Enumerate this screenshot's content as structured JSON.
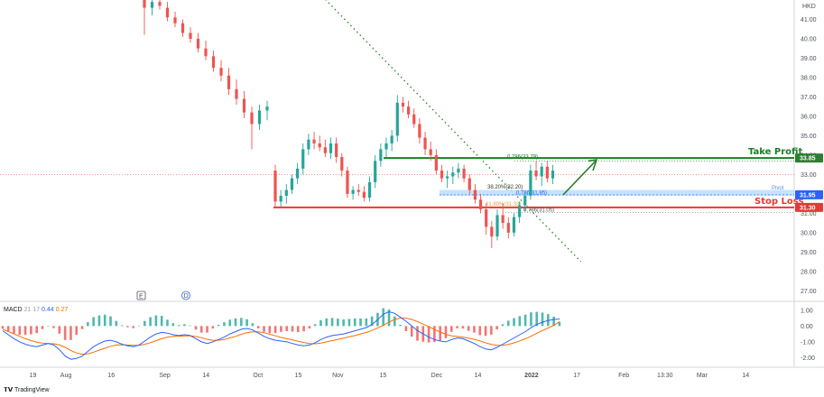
{
  "chart_data": {
    "type": "candlestick",
    "currency": "HKD",
    "price_axis": {
      "ylim": [
        26.5,
        42.0
      ],
      "ticks": [
        "41.00",
        "40.00",
        "39.00",
        "38.00",
        "37.00",
        "36.00",
        "35.00",
        "34.00",
        "33.00",
        "32.00",
        "31.00",
        "30.00",
        "29.00",
        "28.00",
        "27.00"
      ],
      "tick_values": [
        41,
        40,
        39,
        38,
        37,
        36,
        35,
        34,
        33,
        32,
        31,
        30,
        29,
        28,
        27
      ]
    },
    "time_axis": {
      "ticks": [
        "19",
        "Aug",
        "16",
        "Sep",
        "14",
        "Oct",
        "15",
        "Nov",
        "15",
        "Dec",
        "14",
        "2022",
        "17",
        "Feb",
        "13:30",
        "Mar",
        "14"
      ],
      "tick_x_fraction": [
        0.04,
        0.08,
        0.135,
        0.2,
        0.25,
        0.313,
        0.362,
        0.41,
        0.465,
        0.53,
        0.58,
        0.645,
        0.7,
        0.757,
        0.807,
        0.852,
        0.905
      ]
    },
    "candles": [
      {
        "o": 42.0,
        "h": 42.3,
        "l": 40.2,
        "c": 41.6
      },
      {
        "o": 41.6,
        "h": 42.1,
        "l": 41.2,
        "c": 41.9
      },
      {
        "o": 41.9,
        "h": 42.2,
        "l": 41.5,
        "c": 41.7
      },
      {
        "o": 41.6,
        "h": 41.9,
        "l": 40.9,
        "c": 41.1
      },
      {
        "o": 41.1,
        "h": 41.4,
        "l": 40.6,
        "c": 40.8
      },
      {
        "o": 40.8,
        "h": 41.0,
        "l": 40.1,
        "c": 40.3
      },
      {
        "o": 40.3,
        "h": 40.6,
        "l": 39.8,
        "c": 40.0
      },
      {
        "o": 40.0,
        "h": 40.3,
        "l": 39.3,
        "c": 39.5
      },
      {
        "o": 39.5,
        "h": 39.9,
        "l": 38.9,
        "c": 39.1
      },
      {
        "o": 39.1,
        "h": 39.4,
        "l": 38.3,
        "c": 38.5
      },
      {
        "o": 38.5,
        "h": 38.9,
        "l": 37.8,
        "c": 38.1
      },
      {
        "o": 38.1,
        "h": 38.5,
        "l": 37.1,
        "c": 37.4
      },
      {
        "o": 37.4,
        "h": 37.9,
        "l": 36.6,
        "c": 36.9
      },
      {
        "o": 36.9,
        "h": 37.3,
        "l": 35.9,
        "c": 36.2
      },
      {
        "o": 36.2,
        "h": 36.5,
        "l": 34.3,
        "c": 35.6
      },
      {
        "o": 35.6,
        "h": 36.6,
        "l": 35.3,
        "c": 36.3
      },
      {
        "o": 36.3,
        "h": 36.8,
        "l": 35.8,
        "c": 36.5
      },
      {
        "o": 33.2,
        "h": 33.5,
        "l": 31.3,
        "c": 31.6
      },
      {
        "o": 31.6,
        "h": 32.2,
        "l": 31.3,
        "c": 31.9
      },
      {
        "o": 31.9,
        "h": 32.5,
        "l": 31.5,
        "c": 32.2
      },
      {
        "o": 32.2,
        "h": 33.0,
        "l": 32.0,
        "c": 32.8
      },
      {
        "o": 32.8,
        "h": 33.6,
        "l": 32.5,
        "c": 33.3
      },
      {
        "o": 33.3,
        "h": 34.6,
        "l": 33.0,
        "c": 34.3
      },
      {
        "o": 34.3,
        "h": 35.1,
        "l": 34.0,
        "c": 34.8
      },
      {
        "o": 34.8,
        "h": 35.2,
        "l": 34.3,
        "c": 34.6
      },
      {
        "o": 34.6,
        "h": 35.0,
        "l": 34.2,
        "c": 34.4
      },
      {
        "o": 34.4,
        "h": 34.8,
        "l": 33.9,
        "c": 34.1
      },
      {
        "o": 34.1,
        "h": 34.9,
        "l": 33.8,
        "c": 34.6
      },
      {
        "o": 34.6,
        "h": 34.9,
        "l": 33.6,
        "c": 33.9
      },
      {
        "o": 33.9,
        "h": 34.1,
        "l": 32.9,
        "c": 33.2
      },
      {
        "o": 33.2,
        "h": 33.4,
        "l": 31.8,
        "c": 32.0
      },
      {
        "o": 32.0,
        "h": 32.4,
        "l": 31.7,
        "c": 32.2
      },
      {
        "o": 32.2,
        "h": 32.5,
        "l": 31.9,
        "c": 32.1
      },
      {
        "o": 32.1,
        "h": 32.4,
        "l": 31.6,
        "c": 31.8
      },
      {
        "o": 31.8,
        "h": 32.9,
        "l": 31.6,
        "c": 32.6
      },
      {
        "o": 32.6,
        "h": 34.0,
        "l": 32.3,
        "c": 33.7
      },
      {
        "o": 33.7,
        "h": 34.6,
        "l": 33.4,
        "c": 34.3
      },
      {
        "o": 34.3,
        "h": 34.9,
        "l": 33.9,
        "c": 34.6
      },
      {
        "o": 34.6,
        "h": 35.3,
        "l": 34.2,
        "c": 35.0
      },
      {
        "o": 35.0,
        "h": 37.1,
        "l": 34.7,
        "c": 36.7
      },
      {
        "o": 36.7,
        "h": 37.0,
        "l": 36.2,
        "c": 36.5
      },
      {
        "o": 36.5,
        "h": 36.8,
        "l": 35.9,
        "c": 36.1
      },
      {
        "o": 36.1,
        "h": 36.4,
        "l": 35.4,
        "c": 35.6
      },
      {
        "o": 35.6,
        "h": 35.9,
        "l": 34.6,
        "c": 34.9
      },
      {
        "o": 34.9,
        "h": 35.2,
        "l": 34.0,
        "c": 34.3
      },
      {
        "o": 34.3,
        "h": 34.7,
        "l": 33.7,
        "c": 34.0
      },
      {
        "o": 34.0,
        "h": 34.3,
        "l": 33.0,
        "c": 33.2
      },
      {
        "o": 33.2,
        "h": 33.5,
        "l": 32.6,
        "c": 32.8
      },
      {
        "o": 32.8,
        "h": 33.2,
        "l": 32.3,
        "c": 32.9
      },
      {
        "o": 32.9,
        "h": 33.4,
        "l": 32.5,
        "c": 33.1
      },
      {
        "o": 33.1,
        "h": 33.6,
        "l": 32.8,
        "c": 33.3
      },
      {
        "o": 33.3,
        "h": 33.5,
        "l": 32.6,
        "c": 32.8
      },
      {
        "o": 32.8,
        "h": 33.0,
        "l": 32.0,
        "c": 32.2
      },
      {
        "o": 32.2,
        "h": 32.5,
        "l": 31.5,
        "c": 31.7
      },
      {
        "o": 31.7,
        "h": 32.0,
        "l": 31.0,
        "c": 31.2
      },
      {
        "o": 31.2,
        "h": 31.5,
        "l": 29.9,
        "c": 30.3
      },
      {
        "o": 30.3,
        "h": 30.6,
        "l": 29.2,
        "c": 29.8
      },
      {
        "o": 29.8,
        "h": 31.2,
        "l": 29.6,
        "c": 30.9
      },
      {
        "o": 30.9,
        "h": 31.5,
        "l": 30.2,
        "c": 30.5
      },
      {
        "o": 30.5,
        "h": 30.8,
        "l": 29.7,
        "c": 30.0
      },
      {
        "o": 30.0,
        "h": 31.0,
        "l": 29.8,
        "c": 30.8
      },
      {
        "o": 30.8,
        "h": 31.6,
        "l": 30.5,
        "c": 31.4
      },
      {
        "o": 31.4,
        "h": 32.1,
        "l": 31.1,
        "c": 31.9
      },
      {
        "o": 31.9,
        "h": 33.5,
        "l": 31.7,
        "c": 33.2
      },
      {
        "o": 33.2,
        "h": 33.7,
        "l": 32.7,
        "c": 32.9
      },
      {
        "o": 32.9,
        "h": 33.6,
        "l": 32.4,
        "c": 33.4
      },
      {
        "o": 33.4,
        "h": 33.7,
        "l": 32.6,
        "c": 32.8
      },
      {
        "o": 32.8,
        "h": 33.5,
        "l": 32.5,
        "c": 33.2
      }
    ],
    "levels": {
      "take_profit": {
        "label": "Take Profit",
        "value": 33.85,
        "badge": "33.85",
        "color": "#1b7d24"
      },
      "stop_loss": {
        "label": "Stop Loss",
        "value": 31.3,
        "badge": "31.30",
        "color": "#e53935"
      },
      "pivot": {
        "label": "Pivot",
        "value": 31.95,
        "badge": "31.95",
        "color": "#2962ff"
      },
      "last_price": {
        "value": 33.0
      }
    },
    "fib_labels": {
      "tp_fib": "0.786(33.79)",
      "pivot_fib1": "38.20%(32.20)",
      "pivot_fib2": "0.786(31.95)",
      "sl_fib1": "61.80%(31.33)",
      "sl_fib2": "0.786(31.05)"
    },
    "trendline": {
      "x_start": 0.391,
      "y_start": 42.2,
      "x_end": 0.705,
      "y_end": 28.5
    },
    "macd": {
      "label": "MACD",
      "params": "21 17",
      "macd_value": "0.44",
      "signal_value": "0.27",
      "axis_ticks": [
        "1.00",
        "0.00",
        "-1.00",
        "-2.00"
      ],
      "tick_values": [
        1,
        0,
        -1,
        -2
      ],
      "ylim": [
        -2.6,
        1.5
      ],
      "macd_color": "#2962ff",
      "signal_color": "#ff6d00",
      "hist_pos_color": "#26a69a",
      "hist_neg_color": "#ef5350",
      "macd_series": [
        -0.3,
        -0.55,
        -0.8,
        -1.0,
        -1.15,
        -1.25,
        -1.3,
        -1.2,
        -1.1,
        -1.2,
        -1.5,
        -1.9,
        -2.1,
        -2.05,
        -1.9,
        -1.6,
        -1.3,
        -1.1,
        -0.95,
        -0.9,
        -1.0,
        -1.15,
        -1.25,
        -1.3,
        -1.2,
        -0.95,
        -0.7,
        -0.5,
        -0.4,
        -0.45,
        -0.55,
        -0.6,
        -0.55,
        -0.6,
        -0.8,
        -1.0,
        -1.1,
        -1.0,
        -0.85,
        -0.7,
        -0.5,
        -0.35,
        -0.2,
        -0.15,
        -0.25,
        -0.45,
        -0.65,
        -0.8,
        -0.9,
        -0.95,
        -1.0,
        -1.1,
        -1.2,
        -1.25,
        -1.2,
        -1.05,
        -0.85,
        -0.7,
        -0.6,
        -0.55,
        -0.5,
        -0.4,
        -0.3,
        -0.2,
        -0.1,
        0.1,
        0.4,
        0.75,
        0.9,
        0.8,
        0.55,
        0.3,
        0.0,
        -0.3,
        -0.5,
        -0.7,
        -0.85,
        -0.95,
        -1.0,
        -0.85,
        -0.75,
        -0.8,
        -0.95,
        -1.1,
        -1.3,
        -1.45,
        -1.5,
        -1.35,
        -1.15,
        -0.95,
        -0.75,
        -0.55,
        -0.35,
        -0.1,
        0.1,
        0.25,
        0.35,
        0.42,
        0.44
      ],
      "signal_series": [
        -0.2,
        -0.35,
        -0.5,
        -0.65,
        -0.8,
        -0.92,
        -1.02,
        -1.08,
        -1.1,
        -1.12,
        -1.2,
        -1.35,
        -1.55,
        -1.7,
        -1.78,
        -1.75,
        -1.65,
        -1.52,
        -1.4,
        -1.28,
        -1.2,
        -1.18,
        -1.2,
        -1.22,
        -1.22,
        -1.15,
        -1.05,
        -0.92,
        -0.8,
        -0.7,
        -0.66,
        -0.64,
        -0.62,
        -0.62,
        -0.66,
        -0.74,
        -0.84,
        -0.9,
        -0.9,
        -0.85,
        -0.75,
        -0.65,
        -0.52,
        -0.42,
        -0.36,
        -0.36,
        -0.42,
        -0.52,
        -0.62,
        -0.72,
        -0.8,
        -0.88,
        -0.96,
        -1.04,
        -1.1,
        -1.12,
        -1.08,
        -1.0,
        -0.92,
        -0.84,
        -0.76,
        -0.68,
        -0.6,
        -0.5,
        -0.4,
        -0.28,
        -0.12,
        0.05,
        0.25,
        0.42,
        0.5,
        0.5,
        0.42,
        0.28,
        0.12,
        -0.05,
        -0.22,
        -0.38,
        -0.52,
        -0.62,
        -0.66,
        -0.7,
        -0.76,
        -0.84,
        -0.94,
        -1.06,
        -1.16,
        -1.22,
        -1.22,
        -1.16,
        -1.06,
        -0.94,
        -0.8,
        -0.64,
        -0.46,
        -0.28,
        -0.12,
        0.05,
        0.27
      ]
    }
  },
  "ui": {
    "currency_label": "HKD",
    "e_marker": "E",
    "d_marker": "D",
    "footer_brand": "TradingView"
  }
}
